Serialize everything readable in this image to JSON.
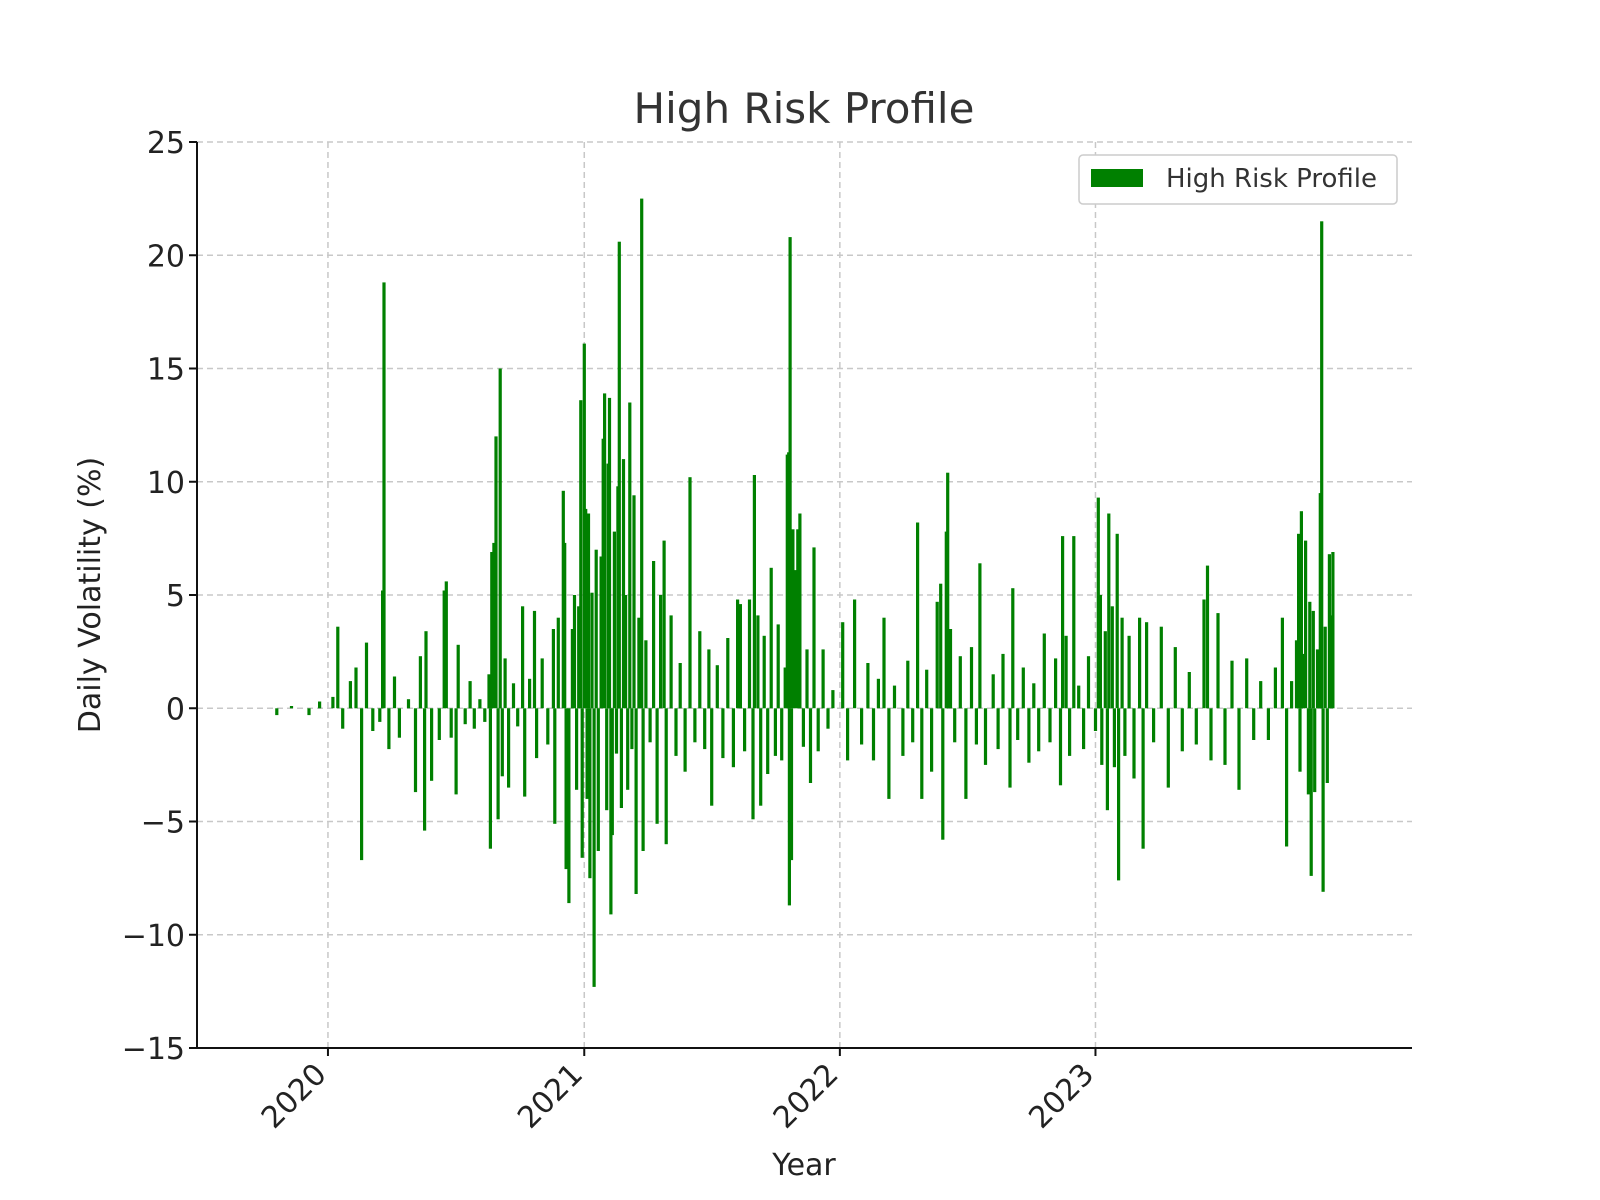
{
  "chart_data": {
    "type": "bar",
    "title": "High Risk Profile",
    "xlabel": "Year",
    "ylabel": "Daily Volatility (%)",
    "ylim": [
      -15,
      25
    ],
    "xlim": [
      "2019-06-28",
      "2024-03-28"
    ],
    "yticks": [
      25,
      20,
      15,
      10,
      5,
      0,
      -5,
      -10,
      -15
    ],
    "ytick_labels": [
      "25",
      "20",
      "15",
      "10",
      "5",
      "0",
      "−5",
      "−10",
      "−15"
    ],
    "xticks": [
      "2020-01-01",
      "2021-01-01",
      "2022-01-01",
      "2023-01-01"
    ],
    "xtick_labels": [
      "2020",
      "2021",
      "2022",
      "2023"
    ],
    "grid": true,
    "legend": {
      "position": "top-right",
      "entries": [
        "High Risk Profile"
      ]
    },
    "color": "#008000",
    "series": [
      {
        "name": "High Risk Profile",
        "points": [
          [
            "2019-10-20",
            -0.3
          ],
          [
            "2019-11-10",
            0.1
          ],
          [
            "2019-12-05",
            -0.3
          ],
          [
            "2019-12-20",
            0.3
          ],
          [
            "2020-01-08",
            0.5
          ],
          [
            "2020-01-15",
            3.6
          ],
          [
            "2020-01-22",
            -0.9
          ],
          [
            "2020-02-02",
            1.2
          ],
          [
            "2020-02-10",
            1.8
          ],
          [
            "2020-02-18",
            -6.7
          ],
          [
            "2020-02-25",
            2.9
          ],
          [
            "2020-03-05",
            -1.0
          ],
          [
            "2020-03-15",
            -0.6
          ],
          [
            "2020-03-19",
            5.2
          ],
          [
            "2020-03-21",
            18.8
          ],
          [
            "2020-03-28",
            -1.8
          ],
          [
            "2020-04-05",
            1.4
          ],
          [
            "2020-04-12",
            -1.3
          ],
          [
            "2020-04-25",
            0.4
          ],
          [
            "2020-05-05",
            -3.7
          ],
          [
            "2020-05-12",
            2.3
          ],
          [
            "2020-05-18",
            -5.4
          ],
          [
            "2020-05-20",
            3.4
          ],
          [
            "2020-05-28",
            -3.2
          ],
          [
            "2020-06-08",
            -1.4
          ],
          [
            "2020-06-15",
            5.2
          ],
          [
            "2020-06-18",
            5.6
          ],
          [
            "2020-06-25",
            -1.3
          ],
          [
            "2020-07-02",
            -3.8
          ],
          [
            "2020-07-05",
            2.8
          ],
          [
            "2020-07-15",
            -0.7
          ],
          [
            "2020-07-22",
            1.2
          ],
          [
            "2020-07-28",
            -0.9
          ],
          [
            "2020-08-05",
            0.4
          ],
          [
            "2020-08-12",
            -0.6
          ],
          [
            "2020-08-18",
            1.5
          ],
          [
            "2020-08-20",
            -6.2
          ],
          [
            "2020-08-22",
            6.9
          ],
          [
            "2020-08-25",
            7.3
          ],
          [
            "2020-08-28",
            12.0
          ],
          [
            "2020-08-31",
            -4.9
          ],
          [
            "2020-09-03",
            15.0
          ],
          [
            "2020-09-06",
            -3.0
          ],
          [
            "2020-09-10",
            2.2
          ],
          [
            "2020-09-15",
            -3.5
          ],
          [
            "2020-09-22",
            1.1
          ],
          [
            "2020-09-28",
            -0.8
          ],
          [
            "2020-10-05",
            4.5
          ],
          [
            "2020-10-08",
            -3.9
          ],
          [
            "2020-10-15",
            1.3
          ],
          [
            "2020-10-22",
            4.3
          ],
          [
            "2020-10-25",
            -2.2
          ],
          [
            "2020-11-02",
            2.2
          ],
          [
            "2020-11-10",
            -1.6
          ],
          [
            "2020-11-18",
            3.5
          ],
          [
            "2020-11-20",
            -5.1
          ],
          [
            "2020-11-25",
            4.0
          ],
          [
            "2020-12-02",
            9.6
          ],
          [
            "2020-12-04",
            7.3
          ],
          [
            "2020-12-06",
            -7.1
          ],
          [
            "2020-12-10",
            -8.6
          ],
          [
            "2020-12-15",
            3.5
          ],
          [
            "2020-12-18",
            5.0
          ],
          [
            "2020-12-21",
            -3.6
          ],
          [
            "2020-12-24",
            4.5
          ],
          [
            "2020-12-27",
            13.6
          ],
          [
            "2020-12-29",
            -6.6
          ],
          [
            "2021-01-01",
            16.1
          ],
          [
            "2021-01-03",
            8.8
          ],
          [
            "2021-01-05",
            -4.0
          ],
          [
            "2021-01-07",
            8.6
          ],
          [
            "2021-01-09",
            -7.5
          ],
          [
            "2021-01-12",
            5.1
          ],
          [
            "2021-01-15",
            -12.3
          ],
          [
            "2021-01-18",
            7.0
          ],
          [
            "2021-01-21",
            -6.3
          ],
          [
            "2021-01-25",
            6.7
          ],
          [
            "2021-01-28",
            11.9
          ],
          [
            "2021-01-30",
            13.9
          ],
          [
            "2021-02-02",
            -4.5
          ],
          [
            "2021-02-04",
            10.8
          ],
          [
            "2021-02-06",
            13.7
          ],
          [
            "2021-02-08",
            -9.1
          ],
          [
            "2021-02-10",
            -5.6
          ],
          [
            "2021-02-13",
            7.8
          ],
          [
            "2021-02-16",
            -2.0
          ],
          [
            "2021-02-18",
            9.8
          ],
          [
            "2021-02-20",
            20.6
          ],
          [
            "2021-02-23",
            -4.4
          ],
          [
            "2021-02-26",
            11.0
          ],
          [
            "2021-03-01",
            5.0
          ],
          [
            "2021-03-04",
            -3.6
          ],
          [
            "2021-03-07",
            13.5
          ],
          [
            "2021-03-10",
            -1.8
          ],
          [
            "2021-03-13",
            9.4
          ],
          [
            "2021-03-16",
            -8.2
          ],
          [
            "2021-03-20",
            4.0
          ],
          [
            "2021-03-24",
            22.5
          ],
          [
            "2021-03-26",
            -6.3
          ],
          [
            "2021-03-30",
            3.0
          ],
          [
            "2021-04-05",
            -1.5
          ],
          [
            "2021-04-10",
            6.5
          ],
          [
            "2021-04-15",
            -5.1
          ],
          [
            "2021-04-20",
            5.0
          ],
          [
            "2021-04-25",
            7.4
          ],
          [
            "2021-04-28",
            -6.0
          ],
          [
            "2021-05-05",
            4.1
          ],
          [
            "2021-05-12",
            -2.1
          ],
          [
            "2021-05-18",
            2.0
          ],
          [
            "2021-05-25",
            -2.8
          ],
          [
            "2021-06-01",
            10.2
          ],
          [
            "2021-06-08",
            -1.5
          ],
          [
            "2021-06-15",
            3.4
          ],
          [
            "2021-06-22",
            -1.8
          ],
          [
            "2021-06-28",
            2.6
          ],
          [
            "2021-07-02",
            -4.3
          ],
          [
            "2021-07-10",
            1.9
          ],
          [
            "2021-07-18",
            -2.2
          ],
          [
            "2021-07-25",
            3.1
          ],
          [
            "2021-08-02",
            -2.6
          ],
          [
            "2021-08-08",
            4.8
          ],
          [
            "2021-08-12",
            4.6
          ],
          [
            "2021-08-18",
            -1.9
          ],
          [
            "2021-08-25",
            4.8
          ],
          [
            "2021-08-30",
            -4.9
          ],
          [
            "2021-09-01",
            10.3
          ],
          [
            "2021-09-06",
            4.1
          ],
          [
            "2021-09-10",
            -4.3
          ],
          [
            "2021-09-15",
            3.2
          ],
          [
            "2021-09-20",
            -2.9
          ],
          [
            "2021-09-25",
            6.2
          ],
          [
            "2021-10-01",
            -2.1
          ],
          [
            "2021-10-05",
            3.7
          ],
          [
            "2021-10-10",
            -2.3
          ],
          [
            "2021-10-15",
            1.8
          ],
          [
            "2021-10-18",
            11.2
          ],
          [
            "2021-10-20",
            11.3
          ],
          [
            "2021-10-21",
            -8.7
          ],
          [
            "2021-10-22",
            20.8
          ],
          [
            "2021-10-24",
            -6.7
          ],
          [
            "2021-10-26",
            7.9
          ],
          [
            "2021-10-29",
            6.1
          ],
          [
            "2021-11-02",
            7.9
          ],
          [
            "2021-11-05",
            8.6
          ],
          [
            "2021-11-10",
            -1.7
          ],
          [
            "2021-11-15",
            2.6
          ],
          [
            "2021-11-20",
            -3.3
          ],
          [
            "2021-11-25",
            7.1
          ],
          [
            "2021-12-01",
            -1.9
          ],
          [
            "2021-12-08",
            2.6
          ],
          [
            "2021-12-15",
            -0.9
          ],
          [
            "2021-12-22",
            0.8
          ],
          [
            "2022-01-05",
            3.8
          ],
          [
            "2022-01-12",
            -2.3
          ],
          [
            "2022-01-22",
            4.8
          ],
          [
            "2022-02-01",
            -1.6
          ],
          [
            "2022-02-10",
            2.0
          ],
          [
            "2022-02-18",
            -2.3
          ],
          [
            "2022-02-25",
            1.3
          ],
          [
            "2022-03-05",
            4.0
          ],
          [
            "2022-03-12",
            -4.0
          ],
          [
            "2022-03-20",
            1.0
          ],
          [
            "2022-04-01",
            -2.1
          ],
          [
            "2022-04-08",
            2.1
          ],
          [
            "2022-04-15",
            -1.5
          ],
          [
            "2022-04-22",
            8.2
          ],
          [
            "2022-04-28",
            -4.0
          ],
          [
            "2022-05-05",
            1.7
          ],
          [
            "2022-05-12",
            -2.8
          ],
          [
            "2022-05-20",
            4.7
          ],
          [
            "2022-05-25",
            5.5
          ],
          [
            "2022-05-28",
            -5.8
          ],
          [
            "2022-06-02",
            7.8
          ],
          [
            "2022-06-04",
            10.4
          ],
          [
            "2022-06-08",
            3.5
          ],
          [
            "2022-06-14",
            -1.5
          ],
          [
            "2022-06-22",
            2.3
          ],
          [
            "2022-06-30",
            -4.0
          ],
          [
            "2022-07-08",
            2.7
          ],
          [
            "2022-07-15",
            -1.6
          ],
          [
            "2022-07-20",
            6.4
          ],
          [
            "2022-07-28",
            -2.5
          ],
          [
            "2022-08-08",
            1.5
          ],
          [
            "2022-08-15",
            -1.8
          ],
          [
            "2022-08-22",
            2.4
          ],
          [
            "2022-09-01",
            -3.5
          ],
          [
            "2022-09-05",
            5.3
          ],
          [
            "2022-09-12",
            -1.4
          ],
          [
            "2022-09-20",
            1.8
          ],
          [
            "2022-09-28",
            -2.4
          ],
          [
            "2022-10-05",
            1.1
          ],
          [
            "2022-10-12",
            -1.9
          ],
          [
            "2022-10-20",
            3.3
          ],
          [
            "2022-10-28",
            -1.5
          ],
          [
            "2022-11-05",
            2.2
          ],
          [
            "2022-11-12",
            -3.4
          ],
          [
            "2022-11-15",
            7.6
          ],
          [
            "2022-11-20",
            3.2
          ],
          [
            "2022-11-25",
            -2.1
          ],
          [
            "2022-12-01",
            7.6
          ],
          [
            "2022-12-08",
            1.0
          ],
          [
            "2022-12-15",
            -1.8
          ],
          [
            "2022-12-22",
            2.3
          ],
          [
            "2023-01-01",
            -1.0
          ],
          [
            "2023-01-05",
            9.3
          ],
          [
            "2023-01-08",
            5.0
          ],
          [
            "2023-01-10",
            -2.5
          ],
          [
            "2023-01-15",
            3.4
          ],
          [
            "2023-01-18",
            -4.5
          ],
          [
            "2023-01-20",
            8.6
          ],
          [
            "2023-01-25",
            4.5
          ],
          [
            "2023-01-28",
            -2.6
          ],
          [
            "2023-02-01",
            7.7
          ],
          [
            "2023-02-03",
            -7.6
          ],
          [
            "2023-02-08",
            4.0
          ],
          [
            "2023-02-12",
            -2.1
          ],
          [
            "2023-02-18",
            3.2
          ],
          [
            "2023-02-25",
            -3.1
          ],
          [
            "2023-03-05",
            4.0
          ],
          [
            "2023-03-10",
            -6.2
          ],
          [
            "2023-03-15",
            3.8
          ],
          [
            "2023-03-25",
            -1.5
          ],
          [
            "2023-04-05",
            3.6
          ],
          [
            "2023-04-15",
            -3.5
          ],
          [
            "2023-04-25",
            2.7
          ],
          [
            "2023-05-05",
            -1.9
          ],
          [
            "2023-05-15",
            1.6
          ],
          [
            "2023-05-25",
            -1.6
          ],
          [
            "2023-06-05",
            4.8
          ],
          [
            "2023-06-10",
            6.3
          ],
          [
            "2023-06-15",
            -2.3
          ],
          [
            "2023-06-25",
            4.2
          ],
          [
            "2023-07-05",
            -2.5
          ],
          [
            "2023-07-15",
            2.1
          ],
          [
            "2023-07-25",
            -3.6
          ],
          [
            "2023-08-05",
            2.2
          ],
          [
            "2023-08-15",
            -1.4
          ],
          [
            "2023-08-25",
            1.2
          ],
          [
            "2023-09-05",
            -1.4
          ],
          [
            "2023-09-15",
            1.8
          ],
          [
            "2023-09-25",
            4.0
          ],
          [
            "2023-10-01",
            -6.1
          ],
          [
            "2023-10-08",
            1.2
          ],
          [
            "2023-10-15",
            3.0
          ],
          [
            "2023-10-18",
            7.7
          ],
          [
            "2023-10-20",
            -2.8
          ],
          [
            "2023-10-22",
            8.7
          ],
          [
            "2023-10-25",
            2.4
          ],
          [
            "2023-10-28",
            7.4
          ],
          [
            "2023-11-01",
            -3.8
          ],
          [
            "2023-11-03",
            4.7
          ],
          [
            "2023-11-05",
            -7.4
          ],
          [
            "2023-11-08",
            4.3
          ],
          [
            "2023-11-10",
            -3.7
          ],
          [
            "2023-11-14",
            2.6
          ],
          [
            "2023-11-18",
            9.5
          ],
          [
            "2023-11-20",
            21.5
          ],
          [
            "2023-11-22",
            -8.1
          ],
          [
            "2023-11-25",
            3.6
          ],
          [
            "2023-11-28",
            -3.3
          ],
          [
            "2023-12-01",
            6.8
          ],
          [
            "2023-12-04",
            4.1
          ],
          [
            "2023-12-06",
            6.9
          ]
        ]
      }
    ]
  }
}
